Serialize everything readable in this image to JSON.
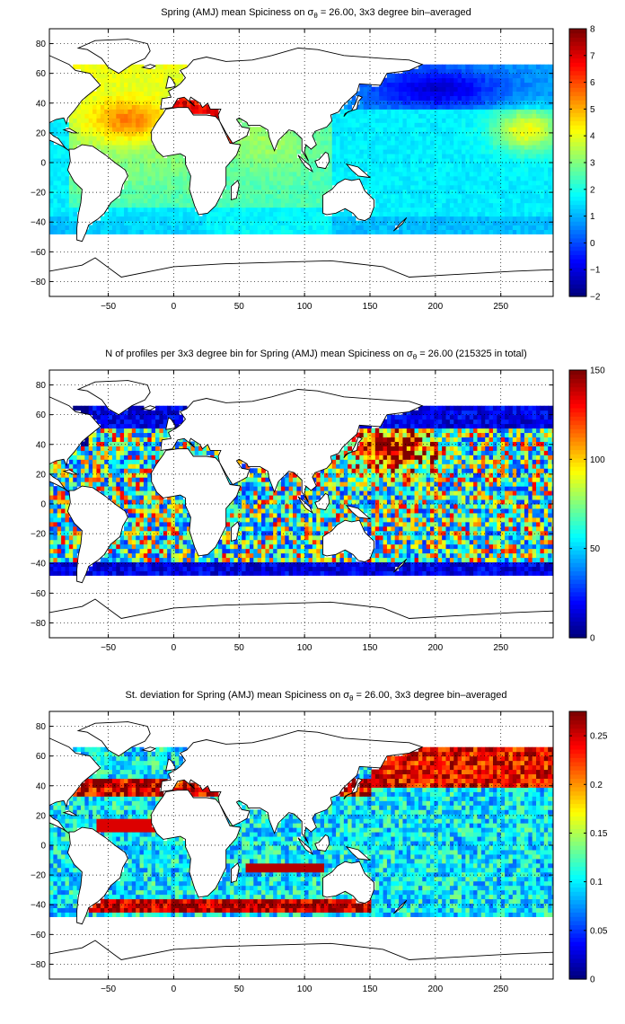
{
  "chart_data": [
    {
      "type": "heatmap",
      "title_prefix": "Spring (AMJ) mean Spiciness on σ",
      "title_sub": "θ",
      "title_suffix": " = 26.00, 3x3 degree bin–averaged",
      "xlim": [
        -95,
        290
      ],
      "ylim": [
        -90,
        90
      ],
      "xticks": [
        "−50",
        "0",
        "50",
        "100",
        "150",
        "200",
        "250"
      ],
      "xtick_values": [
        -50,
        0,
        50,
        100,
        150,
        200,
        250
      ],
      "yticks": [
        "80",
        "60",
        "40",
        "20",
        "0",
        "−20",
        "−40",
        "−60",
        "−80"
      ],
      "ytick_values": [
        80,
        60,
        40,
        20,
        0,
        -20,
        -40,
        -60,
        -80
      ],
      "colorbar": {
        "min": -2,
        "max": 8,
        "ticks": [
          "8",
          "7",
          "6",
          "5",
          "4",
          "3",
          "2",
          "1",
          "0",
          "−1",
          "−2"
        ],
        "tick_values": [
          8,
          7,
          6,
          5,
          4,
          3,
          2,
          1,
          0,
          -1,
          -2
        ]
      },
      "field": "spiciness",
      "grid": true,
      "colormap": "jet"
    },
    {
      "type": "heatmap",
      "title_prefix": "N of profiles per 3x3 degree bin for Spring (AMJ) mean Spiciness on σ",
      "title_sub": "θ",
      "title_suffix": " = 26.00 (215325 in total)",
      "xlim": [
        -95,
        290
      ],
      "ylim": [
        -90,
        90
      ],
      "xticks": [
        "−50",
        "0",
        "50",
        "100",
        "150",
        "200",
        "250"
      ],
      "xtick_values": [
        -50,
        0,
        50,
        100,
        150,
        200,
        250
      ],
      "yticks": [
        "80",
        "60",
        "40",
        "20",
        "0",
        "−20",
        "−40",
        "−60",
        "−80"
      ],
      "ytick_values": [
        80,
        60,
        40,
        20,
        0,
        -20,
        -40,
        -60,
        -80
      ],
      "colorbar": {
        "min": 0,
        "max": 150,
        "ticks": [
          "150",
          "100",
          "50",
          "0"
        ],
        "tick_values": [
          150,
          100,
          50,
          0
        ]
      },
      "field": "count",
      "grid": true,
      "colormap": "jet"
    },
    {
      "type": "heatmap",
      "title_prefix": "St. deviation for Spring (AMJ) mean Spiciness on σ",
      "title_sub": "θ",
      "title_suffix": " = 26.00, 3x3 degree bin–averaged",
      "xlim": [
        -95,
        290
      ],
      "ylim": [
        -90,
        90
      ],
      "xticks": [
        "−50",
        "0",
        "50",
        "100",
        "150",
        "200",
        "250"
      ],
      "xtick_values": [
        -50,
        0,
        50,
        100,
        150,
        200,
        250
      ],
      "yticks": [
        "80",
        "60",
        "40",
        "20",
        "0",
        "−20",
        "−40",
        "−60",
        "−80"
      ],
      "ytick_values": [
        80,
        60,
        40,
        20,
        0,
        -20,
        -40,
        -60,
        -80
      ],
      "colorbar": {
        "min": 0,
        "max": 0.275,
        "ticks": [
          "0.25",
          "0.2",
          "0.15",
          "0.1",
          "0.05",
          "0"
        ],
        "tick_values": [
          0.25,
          0.2,
          0.15,
          0.1,
          0.05,
          0
        ]
      },
      "field": "stdev",
      "grid": true,
      "colormap": "jet"
    }
  ]
}
